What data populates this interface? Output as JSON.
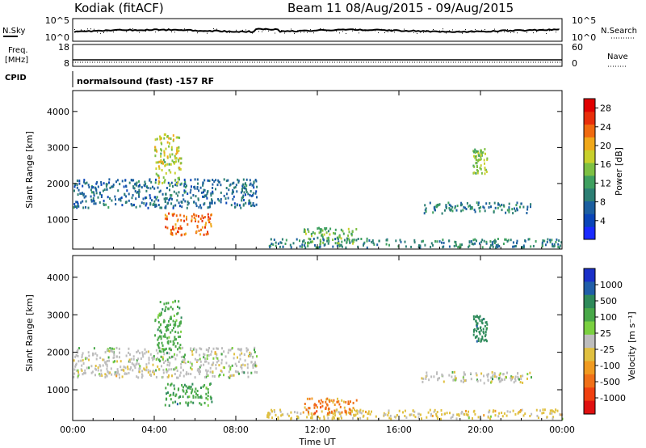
{
  "header": {
    "station": "Kodiak (fitACF)",
    "beam_title": "Beam 11 08/Aug/2015 - 09/Aug/2015"
  },
  "noise_panel": {
    "left_label": "N.Sky",
    "right_label": "N.Search",
    "left_ticks": [
      "10^5",
      "10^0"
    ],
    "right_ticks": [
      "10^5",
      "10^0"
    ]
  },
  "freq_panel": {
    "left_label_line1": "Freq.",
    "left_label_line2": "[MHz]",
    "right_label": "Nave",
    "left_ticks": [
      "18",
      "8"
    ],
    "right_ticks": [
      "60",
      "0"
    ]
  },
  "cpid": {
    "label": "CPID",
    "text": "normalsound (fast) -157 RF"
  },
  "chart_data": [
    {
      "type": "heatmap",
      "name": "power-panel",
      "title": "",
      "xlabel": "",
      "ylabel": "Slant Range [km]",
      "ylim": [
        180,
        4580
      ],
      "yticks": [
        1000,
        2000,
        3000,
        4000
      ],
      "xticks": [
        "00:00",
        "04:00",
        "08:00",
        "12:00",
        "16:00",
        "20:00",
        "00:00"
      ],
      "xlim_hours": [
        0,
        24
      ],
      "colorbar": {
        "label": "Power [dB]",
        "tick_labels": [
          "4",
          "8",
          "12",
          "16",
          "20",
          "24",
          "28"
        ],
        "range": [
          0,
          30
        ],
        "colors": [
          "#1a2bff",
          "#0a45b8",
          "#1c5fa0",
          "#2d7f74",
          "#3fa060",
          "#7dc043",
          "#c8d02c",
          "#f0a81a",
          "#f06a10",
          "#e82e0a",
          "#e00000"
        ]
      },
      "features": [
        {
          "time_start_h": 0.0,
          "time_end_h": 9.0,
          "range_start_km": 1350,
          "range_end_km": 2150,
          "level": 7
        },
        {
          "time_start_h": 4.5,
          "time_end_h": 6.8,
          "range_start_km": 600,
          "range_end_km": 1200,
          "level": 24
        },
        {
          "time_start_h": 4.0,
          "time_end_h": 5.3,
          "range_start_km": 2000,
          "range_end_km": 3400,
          "level": 17
        },
        {
          "time_start_h": 9.5,
          "time_end_h": 24.0,
          "range_start_km": 250,
          "range_end_km": 500,
          "level": 9
        },
        {
          "time_start_h": 11.3,
          "time_end_h": 13.9,
          "range_start_km": 350,
          "range_end_km": 800,
          "level": 14
        },
        {
          "time_start_h": 17.0,
          "time_end_h": 22.5,
          "range_start_km": 1200,
          "range_end_km": 1500,
          "level": 9
        },
        {
          "time_start_h": 19.6,
          "time_end_h": 20.3,
          "range_start_km": 2300,
          "range_end_km": 3000,
          "level": 15
        }
      ]
    },
    {
      "type": "heatmap",
      "name": "velocity-panel",
      "title": "",
      "xlabel": "Time UT",
      "ylabel": "Slant Range [km]",
      "ylim": [
        180,
        4580
      ],
      "yticks": [
        1000,
        2000,
        3000,
        4000
      ],
      "xticks": [
        "00:00",
        "04:00",
        "08:00",
        "12:00",
        "16:00",
        "20:00",
        "00:00"
      ],
      "xlim_hours": [
        0,
        24
      ],
      "colorbar": {
        "label": "Velocity [m s⁻¹]",
        "tick_labels": [
          "1000",
          "500",
          "100",
          "25",
          "-25",
          "-100",
          "-500",
          "-1000"
        ],
        "colors": [
          "#1a30c8",
          "#205ea8",
          "#2e8a5a",
          "#48a848",
          "#7ad040",
          "#bdbdbd",
          "#e0c040",
          "#f09a20",
          "#f07018",
          "#f04010",
          "#e01010"
        ]
      },
      "features": [
        {
          "time_start_h": 0.0,
          "time_end_h": 9.0,
          "range_start_km": 1350,
          "range_end_km": 2150,
          "velocity": 0
        },
        {
          "time_start_h": 4.5,
          "time_end_h": 6.8,
          "range_start_km": 600,
          "range_end_km": 1200,
          "velocity": 80
        },
        {
          "time_start_h": 4.0,
          "time_end_h": 5.3,
          "range_start_km": 2000,
          "range_end_km": 3400,
          "velocity": 60
        },
        {
          "time_start_h": 9.5,
          "time_end_h": 24.0,
          "range_start_km": 250,
          "range_end_km": 500,
          "velocity": -40
        },
        {
          "time_start_h": 11.3,
          "time_end_h": 13.9,
          "range_start_km": 350,
          "range_end_km": 800,
          "velocity": -120
        },
        {
          "time_start_h": 17.0,
          "time_end_h": 22.5,
          "range_start_km": 1200,
          "range_end_km": 1500,
          "velocity": 0
        },
        {
          "time_start_h": 19.6,
          "time_end_h": 20.3,
          "range_start_km": 2300,
          "range_end_km": 3000,
          "velocity": 300
        }
      ]
    }
  ]
}
